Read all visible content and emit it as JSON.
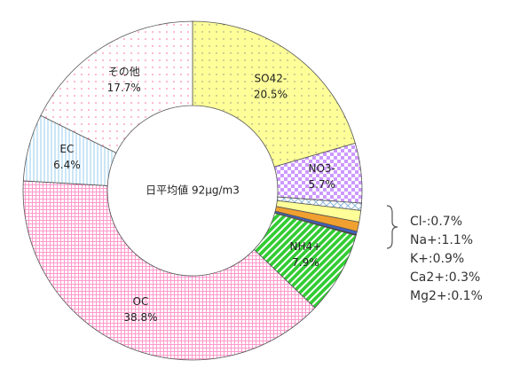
{
  "chart_data": {
    "type": "donut",
    "center_label": "日平均値 92μg/m3",
    "categories": [
      "SO42-",
      "NO3-",
      "Cl-",
      "Na+",
      "K+",
      "Ca2+",
      "Mg2+",
      "NH4+",
      "OC",
      "EC",
      "その他"
    ],
    "values": [
      20.5,
      5.7,
      0.7,
      1.1,
      0.9,
      0.3,
      0.1,
      7.9,
      38.8,
      6.4,
      17.7
    ],
    "value_labels": [
      "20.5%",
      "5.7%",
      ":0.7%",
      ":1.1%",
      ":0.9%",
      ":0.3%",
      ":0.1%",
      "7.9%",
      "38.8%",
      "6.4%",
      "17.7%"
    ],
    "colors": [
      "#ffff99",
      "#cc99ff",
      "#8fb8d8",
      "#ffff99",
      "#f0a030",
      "#4060c0",
      "#111111",
      "#33cc33",
      "#ff99cc",
      "#99ccee",
      "#ff6699"
    ],
    "hatch": [
      "dots",
      "checker",
      "cross",
      "solid",
      "solid",
      "solid",
      "solid",
      "stripes",
      "grid",
      "vlines",
      "sparse-dots"
    ],
    "outside": [
      false,
      false,
      true,
      true,
      true,
      true,
      true,
      false,
      false,
      false,
      false
    ]
  }
}
